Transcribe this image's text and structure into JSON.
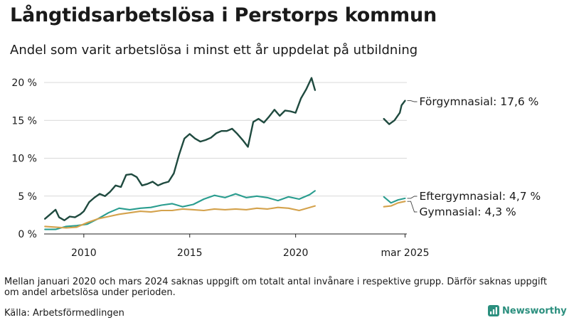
{
  "title": "Långtidsarbetslösa i Perstorps kommun",
  "subtitle": "Andel som varit arbetslösa i minst ett år uppdelat på utbildning",
  "note": "Mellan januari 2020 och mars 2024 saknas uppgift om totalt antal invånare i respektive grupp. Därför saknas uppgift om andel arbetslösa under perioden.",
  "source": "Källa: Arbetsförmedlingen",
  "logo_text": "Newsworthy",
  "colors": {
    "forgymnasial": "#1f4a3f",
    "eftergymnasial": "#2a9d8f",
    "gymnasial": "#d4a24c",
    "axis": "#222222",
    "grid": "#cccccc"
  },
  "chart_data": {
    "type": "line",
    "title": "Långtidsarbetslösa i Perstorps kommun",
    "subtitle": "Andel som varit arbetslösa i minst ett år uppdelat på utbildning",
    "xlabel": "",
    "ylabel": "",
    "ylim": [
      0,
      20
    ],
    "y_ticks": [
      0,
      5,
      10,
      15,
      20
    ],
    "y_tick_labels": [
      "0 %",
      "5 %",
      "10 %",
      "15 %",
      "20 %"
    ],
    "x_tick_labels": [
      {
        "x": "2010-01",
        "label": "2010"
      },
      {
        "x": "2015-01",
        "label": "2015"
      },
      {
        "x": "2020-01",
        "label": "2020"
      },
      {
        "x": "2025-03",
        "label": "mar 2025"
      }
    ],
    "grid": "horizontal",
    "series": [
      {
        "name": "Förgymnasial",
        "end_label": "Förgymnasial: 17,6 %",
        "segments": [
          [
            [
              "2008-03",
              2.0
            ],
            [
              "2008-06",
              2.6
            ],
            [
              "2008-09",
              3.2
            ],
            [
              "2008-11",
              2.2
            ],
            [
              "2009-02",
              1.8
            ],
            [
              "2009-05",
              2.3
            ],
            [
              "2009-08",
              2.2
            ],
            [
              "2009-11",
              2.6
            ],
            [
              "2010-01",
              3.0
            ],
            [
              "2010-04",
              4.2
            ],
            [
              "2010-07",
              4.8
            ],
            [
              "2010-10",
              5.3
            ],
            [
              "2011-01",
              5.0
            ],
            [
              "2011-04",
              5.6
            ],
            [
              "2011-07",
              6.4
            ],
            [
              "2011-10",
              6.2
            ],
            [
              "2012-01",
              7.8
            ],
            [
              "2012-04",
              7.9
            ],
            [
              "2012-07",
              7.5
            ],
            [
              "2012-10",
              6.4
            ],
            [
              "2013-01",
              6.6
            ],
            [
              "2013-04",
              6.9
            ],
            [
              "2013-07",
              6.4
            ],
            [
              "2013-10",
              6.7
            ],
            [
              "2014-01",
              6.9
            ],
            [
              "2014-04",
              8.0
            ],
            [
              "2014-07",
              10.5
            ],
            [
              "2014-10",
              12.6
            ],
            [
              "2015-01",
              13.2
            ],
            [
              "2015-04",
              12.6
            ],
            [
              "2015-07",
              12.2
            ],
            [
              "2015-10",
              12.4
            ],
            [
              "2016-01",
              12.7
            ],
            [
              "2016-04",
              13.3
            ],
            [
              "2016-07",
              13.6
            ],
            [
              "2016-10",
              13.6
            ],
            [
              "2017-01",
              13.9
            ],
            [
              "2017-04",
              13.2
            ],
            [
              "2017-07",
              12.4
            ],
            [
              "2017-10",
              11.5
            ],
            [
              "2018-01",
              14.8
            ],
            [
              "2018-04",
              15.2
            ],
            [
              "2018-07",
              14.7
            ],
            [
              "2018-10",
              15.5
            ],
            [
              "2019-01",
              16.4
            ],
            [
              "2019-04",
              15.6
            ],
            [
              "2019-07",
              16.3
            ],
            [
              "2019-10",
              16.2
            ],
            [
              "2020-01",
              16.0
            ],
            [
              "2020-04",
              17.9
            ],
            [
              "2020-07",
              19.1
            ],
            [
              "2020-10",
              20.6
            ],
            [
              "2020-12",
              19.0
            ]
          ],
          [
            [
              "2024-03",
              15.2
            ],
            [
              "2024-06",
              14.5
            ],
            [
              "2024-09",
              15.0
            ],
            [
              "2024-12",
              16.0
            ],
            [
              "2025-01",
              17.0
            ],
            [
              "2025-03",
              17.6
            ]
          ]
        ]
      },
      {
        "name": "Eftergymnasial",
        "end_label": "Eftergymnasial:  4,7 %",
        "segments": [
          [
            [
              "2008-03",
              0.6
            ],
            [
              "2008-09",
              0.6
            ],
            [
              "2009-03",
              1.0
            ],
            [
              "2009-09",
              1.1
            ],
            [
              "2010-03",
              1.3
            ],
            [
              "2010-09",
              2.0
            ],
            [
              "2011-03",
              2.8
            ],
            [
              "2011-09",
              3.4
            ],
            [
              "2012-03",
              3.2
            ],
            [
              "2012-09",
              3.4
            ],
            [
              "2013-03",
              3.5
            ],
            [
              "2013-09",
              3.8
            ],
            [
              "2014-03",
              4.0
            ],
            [
              "2014-09",
              3.6
            ],
            [
              "2015-03",
              3.9
            ],
            [
              "2015-09",
              4.6
            ],
            [
              "2016-03",
              5.1
            ],
            [
              "2016-09",
              4.8
            ],
            [
              "2017-03",
              5.3
            ],
            [
              "2017-09",
              4.8
            ],
            [
              "2018-03",
              5.0
            ],
            [
              "2018-09",
              4.8
            ],
            [
              "2019-03",
              4.4
            ],
            [
              "2019-09",
              4.9
            ],
            [
              "2020-03",
              4.6
            ],
            [
              "2020-09",
              5.2
            ],
            [
              "2020-12",
              5.7
            ]
          ],
          [
            [
              "2024-03",
              4.9
            ],
            [
              "2024-07",
              4.1
            ],
            [
              "2024-11",
              4.5
            ],
            [
              "2025-03",
              4.7
            ]
          ]
        ]
      },
      {
        "name": "Gymnasial",
        "end_label": "Gymnasial:  4,3 %",
        "segments": [
          [
            [
              "2008-03",
              1.0
            ],
            [
              "2008-09",
              0.9
            ],
            [
              "2009-03",
              0.8
            ],
            [
              "2009-09",
              0.9
            ],
            [
              "2010-03",
              1.5
            ],
            [
              "2010-09",
              2.0
            ],
            [
              "2011-03",
              2.3
            ],
            [
              "2011-09",
              2.6
            ],
            [
              "2012-03",
              2.8
            ],
            [
              "2012-09",
              3.0
            ],
            [
              "2013-03",
              2.9
            ],
            [
              "2013-09",
              3.1
            ],
            [
              "2014-03",
              3.1
            ],
            [
              "2014-09",
              3.3
            ],
            [
              "2015-03",
              3.2
            ],
            [
              "2015-09",
              3.1
            ],
            [
              "2016-03",
              3.3
            ],
            [
              "2016-09",
              3.2
            ],
            [
              "2017-03",
              3.3
            ],
            [
              "2017-09",
              3.2
            ],
            [
              "2018-03",
              3.4
            ],
            [
              "2018-09",
              3.3
            ],
            [
              "2019-03",
              3.5
            ],
            [
              "2019-09",
              3.4
            ],
            [
              "2020-03",
              3.1
            ],
            [
              "2020-09",
              3.5
            ],
            [
              "2020-12",
              3.7
            ]
          ],
          [
            [
              "2024-03",
              3.6
            ],
            [
              "2024-07",
              3.7
            ],
            [
              "2024-11",
              4.1
            ],
            [
              "2025-03",
              4.3
            ]
          ]
        ]
      }
    ]
  }
}
